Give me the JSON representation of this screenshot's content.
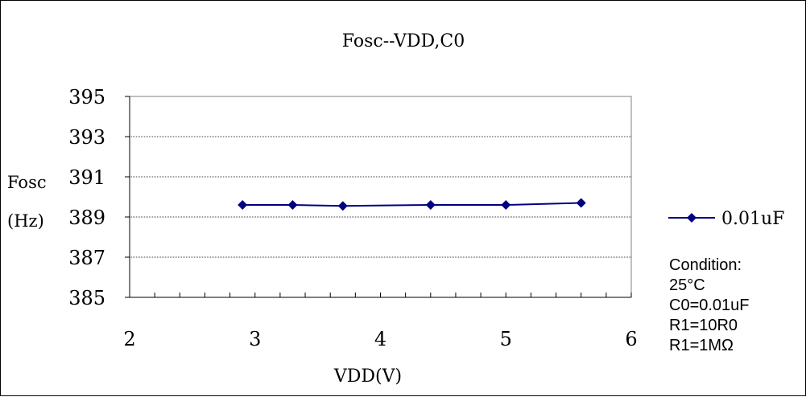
{
  "chart_data": {
    "type": "line",
    "title": "Fosc--VDD,C0",
    "xlabel": "VDD(V)",
    "ylabel_line1": "Fosc",
    "ylabel_line2": "(Hz)",
    "xlim": [
      2,
      6
    ],
    "ylim": [
      385,
      395
    ],
    "x_ticks": [
      2,
      3,
      4,
      5,
      6
    ],
    "y_ticks": [
      385,
      387,
      389,
      391,
      393,
      395
    ],
    "x_minor_step": 0.2,
    "grid": "horizontal",
    "legend_position": "right",
    "series": [
      {
        "name": "0.01uF",
        "color": "#00007F",
        "marker": "diamond",
        "x": [
          2.9,
          3.3,
          3.7,
          4.4,
          5.0,
          5.6
        ],
        "y": [
          389.6,
          389.6,
          389.55,
          389.6,
          389.6,
          389.7
        ]
      }
    ],
    "annotation_lines": [
      "Condition:",
      "25°C",
      "C0=0.01uF",
      "R1=10R0",
      "R1=1MΩ"
    ]
  }
}
